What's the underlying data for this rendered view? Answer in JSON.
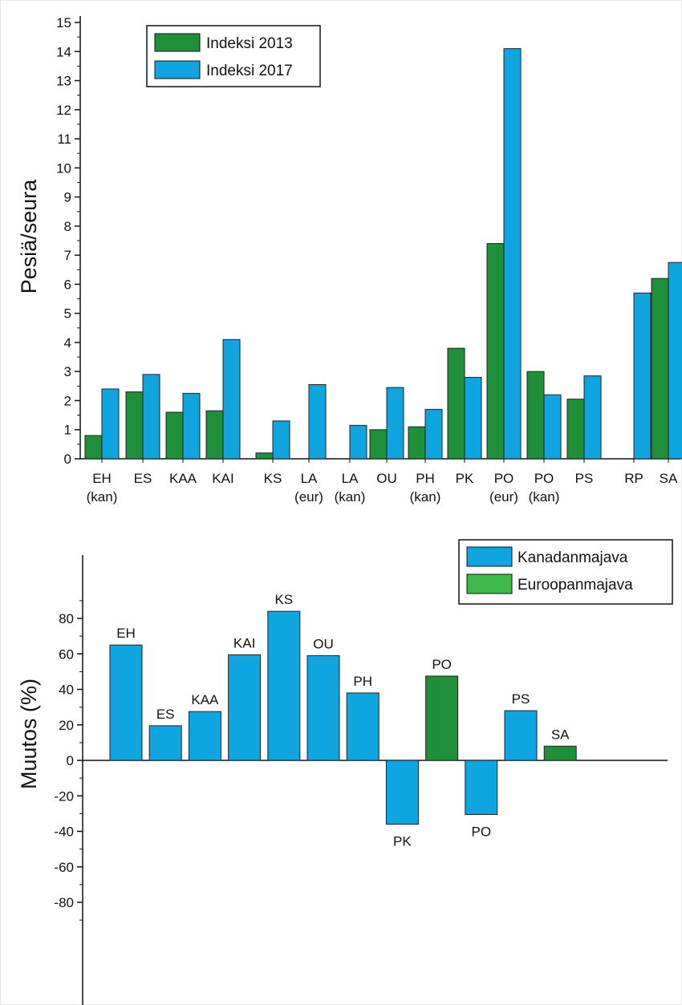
{
  "colors": {
    "green": "#1f8f3a",
    "blue": "#0ea5e0",
    "green_light": "#3db84a",
    "axis": "#111111"
  },
  "chart_data": [
    {
      "type": "bar",
      "ylabel": "Pesiä/seura",
      "ylim": [
        0,
        15
      ],
      "yticks": [
        0,
        1,
        2,
        3,
        4,
        5,
        6,
        7,
        8,
        9,
        10,
        11,
        12,
        13,
        14,
        15
      ],
      "legend_position": "top-left",
      "categories": [
        {
          "line1": "EH",
          "line2": "(kan)"
        },
        {
          "line1": "ES",
          "line2": ""
        },
        {
          "line1": "KAA",
          "line2": ""
        },
        {
          "line1": "KAI",
          "line2": ""
        },
        {
          "line1": "KS",
          "line2": ""
        },
        {
          "line1": "LA",
          "line2": "(eur)"
        },
        {
          "line1": "LA",
          "line2": "(kan)"
        },
        {
          "line1": "OU",
          "line2": ""
        },
        {
          "line1": "PH",
          "line2": "(kan)"
        },
        {
          "line1": "PK",
          "line2": ""
        },
        {
          "line1": "PO",
          "line2": "(eur)"
        },
        {
          "line1": "PO",
          "line2": "(kan)"
        },
        {
          "line1": "PS",
          "line2": ""
        },
        {
          "line1": "RP",
          "line2": ""
        },
        {
          "line1": "SA",
          "line2": ""
        }
      ],
      "series": [
        {
          "name": "Indeksi 2013",
          "color": "#1f8f3a",
          "values": [
            0.8,
            2.3,
            1.6,
            1.65,
            0.2,
            null,
            null,
            1.0,
            1.1,
            3.8,
            7.4,
            3.0,
            2.05,
            null,
            6.2
          ]
        },
        {
          "name": "Indeksi 2017",
          "color": "#0ea5e0",
          "values": [
            2.4,
            2.9,
            2.25,
            4.1,
            1.3,
            2.55,
            1.15,
            2.45,
            1.7,
            2.8,
            14.1,
            2.2,
            2.85,
            5.7,
            6.75
          ]
        }
      ]
    },
    {
      "type": "bar",
      "ylabel": "Muutos (%)",
      "ylim": [
        -95,
        100
      ],
      "yticks": [
        -80,
        -60,
        -40,
        -20,
        0,
        20,
        40,
        60,
        80
      ],
      "legend_position": "top-right",
      "legend": [
        {
          "name": "Kanadanmajava",
          "color": "#0ea5e0"
        },
        {
          "name": "Euroopanmajava",
          "color": "#3db84a"
        }
      ],
      "bars": [
        {
          "label": "EH",
          "value": 65,
          "species": "Kanadanmajava"
        },
        {
          "label": "ES",
          "value": 19.5,
          "species": "Kanadanmajava"
        },
        {
          "label": "KAA",
          "value": 27.5,
          "species": "Kanadanmajava"
        },
        {
          "label": "KAI",
          "value": 59.5,
          "species": "Kanadanmajava"
        },
        {
          "label": "KS",
          "value": 84,
          "species": "Kanadanmajava"
        },
        {
          "label": "OU",
          "value": 59,
          "species": "Kanadanmajava"
        },
        {
          "label": "PH",
          "value": 38,
          "species": "Kanadanmajava"
        },
        {
          "label": "PK",
          "value": -36,
          "species": "Kanadanmajava"
        },
        {
          "label": "PO",
          "value": 47.5,
          "species": "Euroopanmajava"
        },
        {
          "label": "PO",
          "value": -30.5,
          "species": "Kanadanmajava"
        },
        {
          "label": "PS",
          "value": 28,
          "species": "Kanadanmajava"
        },
        {
          "label": "SA",
          "value": 8,
          "species": "Euroopanmajava"
        }
      ]
    }
  ]
}
